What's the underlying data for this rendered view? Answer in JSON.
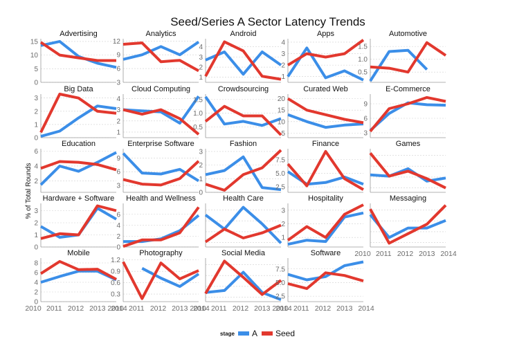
{
  "chart_data": {
    "type": "line",
    "title": "Seed/Series A Sector Latency Trends",
    "ylabel": "% of Total Rounds",
    "xlabel": "",
    "x": [
      2010,
      2011,
      2012,
      2013,
      2014
    ],
    "x_tick_labels": [
      "2010",
      "2011",
      "2012",
      "2013",
      "2014"
    ],
    "legend": {
      "title": "stage",
      "placement": "bottom",
      "entries": [
        "A",
        "Seed"
      ]
    },
    "series_colors": {
      "A": "#3b8ee8",
      "Seed": "#e2382e"
    },
    "grid": true,
    "panels": [
      {
        "name": "Advertising",
        "ylim": [
          0,
          16
        ],
        "yticks": [
          0,
          5,
          10,
          15
        ],
        "ytick_labels": [
          "0",
          "5",
          "10",
          "15"
        ],
        "series": [
          {
            "name": "A",
            "values": [
              13.5,
              15,
              9.5,
              7,
              5.5
            ]
          },
          {
            "name": "Seed",
            "values": [
              14.7,
              10,
              9,
              8,
              8
            ]
          }
        ]
      },
      {
        "name": "Analytics",
        "ylim": [
          3,
          12.5
        ],
        "yticks": [
          3,
          6,
          9,
          12
        ],
        "ytick_labels": [
          "3",
          "6",
          "9",
          "12"
        ],
        "series": [
          {
            "name": "A",
            "values": [
              8,
              9,
              10.8,
              9,
              11.8
            ]
          },
          {
            "name": "Seed",
            "values": [
              11.3,
              11.6,
              7.5,
              7.8,
              5.5
            ]
          }
        ]
      },
      {
        "name": "Android",
        "ylim": [
          0.5,
          4.8
        ],
        "yticks": [
          1,
          2,
          3,
          4
        ],
        "ytick_labels": [
          "1",
          "2",
          "3",
          "4"
        ],
        "series": [
          {
            "name": "A",
            "values": [
              2.7,
              3.5,
              1.3,
              3.5,
              2.2
            ]
          },
          {
            "name": "Seed",
            "values": [
              1.1,
              4.5,
              3.6,
              1.1,
              0.8
            ]
          }
        ]
      },
      {
        "name": "Apps",
        "ylim": [
          0.5,
          4.3
        ],
        "yticks": [
          1,
          2,
          3,
          4
        ],
        "ytick_labels": [
          "1",
          "2",
          "3",
          "4"
        ],
        "series": [
          {
            "name": "A",
            "values": [
              1,
              3.5,
              0.9,
              1.5,
              0.7
            ]
          },
          {
            "name": "Seed",
            "values": [
              2,
              3,
              2.7,
              3,
              4.2
            ]
          }
        ]
      },
      {
        "name": "Automotive",
        "ylim": [
          0.1,
          1.8
        ],
        "yticks": [
          0.5,
          1.0,
          1.5
        ],
        "ytick_labels": [
          "0.5",
          "1.0",
          "1.5"
        ],
        "series": [
          {
            "name": "A",
            "values": [
              0.15,
              1.3,
              1.35,
              0.6,
              null
            ]
          },
          {
            "name": "Seed",
            "values": [
              0.7,
              0.65,
              0.5,
              1.65,
              1.15
            ]
          }
        ]
      },
      {
        "name": "Big Data",
        "ylim": [
          0,
          3.3
        ],
        "yticks": [
          0,
          1,
          2,
          3
        ],
        "ytick_labels": [
          "0",
          "1",
          "2",
          "3"
        ],
        "series": [
          {
            "name": "A",
            "values": [
              0.1,
              0.5,
              1.5,
              2.4,
              2.2
            ]
          },
          {
            "name": "Seed",
            "values": [
              0.4,
              3.3,
              3,
              2,
              1.85
            ]
          }
        ]
      },
      {
        "name": "Cloud Computing",
        "ylim": [
          0.5,
          4.4
        ],
        "yticks": [
          1,
          2,
          3,
          4
        ],
        "ytick_labels": [
          "1",
          "2",
          "3",
          "4"
        ],
        "series": [
          {
            "name": "A",
            "values": [
              3,
              2.9,
              2.8,
              1.8,
              4.2
            ]
          },
          {
            "name": "Seed",
            "values": [
              3,
              2.6,
              3,
              2.2,
              0.8
            ]
          }
        ]
      },
      {
        "name": "Crowdsourcing",
        "ylim": [
          0.1,
          1.7
        ],
        "yticks": [
          0.5,
          1.0,
          1.5
        ],
        "ytick_labels": [
          "0.5",
          "1.0",
          "1.5"
        ],
        "series": [
          {
            "name": "A",
            "values": [
              1.6,
              0.6,
              0.7,
              0.55,
              0.8
            ]
          },
          {
            "name": "Seed",
            "values": [
              0.7,
              1.25,
              0.9,
              0.9,
              0.2
            ]
          }
        ]
      },
      {
        "name": "Curated Web",
        "ylim": [
          3,
          22
        ],
        "yticks": [
          5,
          10,
          15,
          20
        ],
        "ytick_labels": [
          "5",
          "10",
          "15",
          "20"
        ],
        "series": [
          {
            "name": "A",
            "values": [
              13,
              10,
              7.5,
              8.5,
              9
            ]
          },
          {
            "name": "Seed",
            "values": [
              20,
              15,
              13,
              11,
              9.5
            ]
          }
        ]
      },
      {
        "name": "E-Commerce",
        "ylim": [
          2,
          11
        ],
        "yticks": [
          3,
          6,
          9
        ],
        "ytick_labels": [
          "3",
          "6",
          "9"
        ],
        "series": [
          {
            "name": "A",
            "values": [
              3.5,
              7,
              9.2,
              8.8,
              8.7
            ]
          },
          {
            "name": "Seed",
            "values": [
              3.3,
              8,
              9,
              10.3,
              9.5
            ]
          }
        ]
      },
      {
        "name": "Education",
        "ylim": [
          0.5,
          6.3
        ],
        "yticks": [
          2,
          4,
          6
        ],
        "ytick_labels": [
          "2",
          "4",
          "6"
        ],
        "series": [
          {
            "name": "A",
            "values": [
              1.5,
              4,
              3.3,
              4.5,
              5.8
            ]
          },
          {
            "name": "Seed",
            "values": [
              3.7,
              4.6,
              4.5,
              4.2,
              3.5
            ]
          }
        ]
      },
      {
        "name": "Enterprise Software",
        "ylim": [
          1.5,
          11
        ],
        "yticks": [
          3,
          6,
          9
        ],
        "ytick_labels": [
          "3",
          "6",
          "9"
        ],
        "series": [
          {
            "name": "A",
            "values": [
              10,
              5.7,
              5.5,
              6.5,
              4
            ]
          },
          {
            "name": "Seed",
            "values": [
              4.3,
              3.3,
              3.1,
              4.5,
              8.3
            ]
          }
        ]
      },
      {
        "name": "Fashion",
        "ylim": [
          0,
          3.2
        ],
        "yticks": [
          0,
          1,
          2,
          3
        ],
        "ytick_labels": [
          "0",
          "1",
          "2",
          "3"
        ],
        "series": [
          {
            "name": "A",
            "values": [
              1.3,
              1.6,
              2.6,
              0.35,
              0.2
            ]
          },
          {
            "name": "Seed",
            "values": [
              0.6,
              0.15,
              1.3,
              1.8,
              3.1
            ]
          }
        ]
      },
      {
        "name": "Finance",
        "ylim": [
          1.5,
          9.5
        ],
        "yticks": [
          2.5,
          5.0,
          7.5
        ],
        "ytick_labels": [
          "2.5",
          "5.0",
          "7.5"
        ],
        "series": [
          {
            "name": "A",
            "values": [
              5.3,
              3,
              3.3,
              4.3,
              3
            ]
          },
          {
            "name": "Seed",
            "values": [
              6.7,
              2.7,
              9,
              4,
              2
            ]
          }
        ]
      },
      {
        "name": "Games",
        "ylim": [
          0,
          7
        ],
        "yticks": [],
        "ytick_labels": [],
        "series": [
          {
            "name": "A",
            "values": [
              2.8,
              2.6,
              3.8,
              1.8,
              2.3
            ]
          },
          {
            "name": "Seed",
            "values": [
              6.3,
              2.6,
              3.4,
              2.2,
              0.7
            ]
          }
        ]
      },
      {
        "name": "Hardware + Software",
        "ylim": [
          0,
          3.6
        ],
        "yticks": [
          0,
          1,
          2,
          3
        ],
        "ytick_labels": [
          "0",
          "1",
          "2",
          "3"
        ],
        "series": [
          {
            "name": "A",
            "values": [
              1.7,
              0.8,
              1,
              3.2,
              2.3
            ]
          },
          {
            "name": "Seed",
            "values": [
              0.7,
              1.1,
              1,
              3.4,
              3
            ]
          }
        ]
      },
      {
        "name": "Health and Wellness",
        "ylim": [
          0,
          8
        ],
        "yticks": [
          0,
          2,
          4,
          6
        ],
        "ytick_labels": [
          "0",
          "2",
          "4",
          "6"
        ],
        "series": [
          {
            "name": "A",
            "values": [
              1,
              1,
              1.5,
              3,
              5.8
            ]
          },
          {
            "name": "Seed",
            "values": [
              0.1,
              1.3,
              1.3,
              2.6,
              7.3
            ]
          }
        ]
      },
      {
        "name": "Health Care",
        "ylim": [
          0.2,
          3.6
        ],
        "yticks": [],
        "ytick_labels": [],
        "series": [
          {
            "name": "A",
            "values": [
              2.7,
              1.6,
              3.3,
              2,
              0.5
            ]
          },
          {
            "name": "Seed",
            "values": [
              0.6,
              1.6,
              0.9,
              1.3,
              1.9
            ]
          }
        ]
      },
      {
        "name": "Hospitality",
        "ylim": [
          0.3,
          3.5
        ],
        "yticks": [
          1,
          2,
          3
        ],
        "ytick_labels": [
          "1",
          "2",
          "3"
        ],
        "series": [
          {
            "name": "A",
            "values": [
              0.5,
              0.8,
              0.7,
              2.5,
              2.8
            ]
          },
          {
            "name": "Seed",
            "values": [
              0.8,
              1.8,
              1,
              2.7,
              3.4
            ]
          }
        ]
      },
      {
        "name": "Messaging",
        "ylim": [
          0,
          2.3
        ],
        "yticks": [],
        "ytick_labels": [],
        "series": [
          {
            "name": "A",
            "values": [
              1.7,
              0.5,
              1,
              1,
              1.4
            ]
          },
          {
            "name": "Seed",
            "values": [
              2,
              0.2,
              0.7,
              1.2,
              2.2
            ]
          }
        ]
      },
      {
        "name": "Mobile",
        "ylim": [
          0,
          9
        ],
        "yticks": [
          0,
          2,
          4,
          6,
          8
        ],
        "ytick_labels": [
          "0",
          "2",
          "4",
          "6",
          "8"
        ],
        "series": [
          {
            "name": "A",
            "values": [
              4,
              5.2,
              6.3,
              6.3,
              4.5
            ]
          },
          {
            "name": "Seed",
            "values": [
              5.8,
              8.3,
              6.6,
              6.7,
              4.6
            ]
          }
        ]
      },
      {
        "name": "Photography",
        "ylim": [
          0.1,
          1.25
        ],
        "yticks": [
          0.3,
          0.6,
          0.9,
          1.2
        ],
        "ytick_labels": [
          "0.3",
          "0.6",
          "0.9",
          "1.2"
        ],
        "series": [
          {
            "name": "A",
            "values": [
              null,
              0.98,
              0.72,
              0.5,
              0.83
            ]
          },
          {
            "name": "Seed",
            "values": [
              1.15,
              0.18,
              1.12,
              0.7,
              0.92
            ]
          }
        ]
      },
      {
        "name": "Social Media",
        "ylim": [
          0,
          4.3
        ],
        "yticks": [],
        "ytick_labels": [],
        "series": [
          {
            "name": "A",
            "values": [
              0.9,
              1.1,
              2.9,
              0.9,
              0.2
            ]
          },
          {
            "name": "Seed",
            "values": [
              0.8,
              4,
              2.4,
              0.7,
              2.1
            ]
          }
        ]
      },
      {
        "name": "Software",
        "ylim": [
          1.5,
          9.5
        ],
        "yticks": [
          2.5,
          5.0,
          7.5
        ],
        "ytick_labels": [
          "2.5",
          "5.0",
          "7.5"
        ],
        "series": [
          {
            "name": "A",
            "values": [
              6.5,
              5.5,
              6.1,
              8.1,
              8.8
            ]
          },
          {
            "name": "Seed",
            "values": [
              4.8,
              3.9,
              6.8,
              6.3,
              5.3
            ]
          }
        ]
      }
    ]
  }
}
